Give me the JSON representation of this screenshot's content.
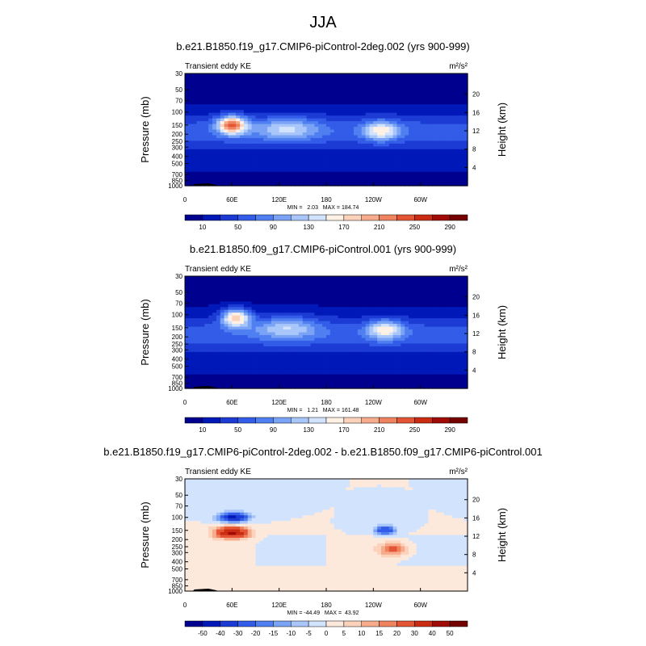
{
  "page_title": "JJA",
  "colors": {
    "seq": [
      "#00008f",
      "#0019b8",
      "#1c3ad4",
      "#335ce8",
      "#4f7ff0",
      "#7aa3f5",
      "#a8c6fa",
      "#d2e3fd",
      "#fff1e4",
      "#fcd2bb",
      "#f6ac8c",
      "#ef835f",
      "#e35535",
      "#c92b13",
      "#a10b05",
      "#740000"
    ],
    "div": [
      "#00008f",
      "#0019b8",
      "#1c3ad4",
      "#335ce8",
      "#4f7ff0",
      "#7aa3f5",
      "#a8c6fa",
      "#d2e3fd",
      "#fde9dc",
      "#fcd2bb",
      "#f6ac8c",
      "#ef835f",
      "#e35535",
      "#c92b13",
      "#a10b05",
      "#740000"
    ]
  },
  "chart_data": [
    {
      "type": "heatmap",
      "title": "b.e21.B1850.f19_g17.CMIP6-piControl-2deg.002 (yrs 900-999)",
      "left_label": "Transient eddy KE",
      "unit_label": "m²/s²",
      "ylabel": "Pressure (mb)",
      "y2label": "Height (km)",
      "xticks": [
        "0",
        "60E",
        "120E",
        "180",
        "120W",
        "60W"
      ],
      "pressure_ticks": [
        "30",
        "50",
        "70",
        "100",
        "150",
        "200",
        "250",
        "300",
        "400",
        "500",
        "700",
        "850",
        "1000"
      ],
      "height_ticks": [
        "4",
        "8",
        "12",
        "16",
        "20"
      ],
      "stats": "MIN =   2.03   MAX = 184.74",
      "min": 2.03,
      "max": 184.74,
      "colorbar": {
        "labels": [
          "10",
          "50",
          "90",
          "130",
          "170",
          "210",
          "250",
          "290"
        ],
        "levels": [
          10,
          30,
          50,
          70,
          90,
          110,
          130,
          150,
          170,
          190,
          210,
          230,
          250,
          270,
          290
        ]
      },
      "features": [
        {
          "lon": 60,
          "p": 150,
          "value": 185,
          "lon_spread": 18,
          "p_spread": 0.28
        },
        {
          "lon": 250,
          "p": 180,
          "value": 110,
          "lon_spread": 22,
          "p_spread": 0.3
        },
        {
          "lon": 130,
          "p": 170,
          "value": 75,
          "lon_spread": 40,
          "p_spread": 0.35
        }
      ]
    },
    {
      "type": "heatmap",
      "title": "b.e21.B1850.f09_g17.CMIP6-piControl.001 (yrs 900-999)",
      "left_label": "Transient eddy KE",
      "unit_label": "m²/s²",
      "ylabel": "Pressure (mb)",
      "y2label": "Height (km)",
      "xticks": [
        "0",
        "60E",
        "120E",
        "180",
        "120W",
        "60W"
      ],
      "pressure_ticks": [
        "30",
        "50",
        "70",
        "100",
        "150",
        "200",
        "250",
        "300",
        "400",
        "500",
        "700",
        "850",
        "1000"
      ],
      "height_ticks": [
        "4",
        "8",
        "12",
        "16",
        "20"
      ],
      "stats": "MIN =   1.21   MAX = 161.48",
      "min": 1.21,
      "max": 161.48,
      "colorbar": {
        "labels": [
          "10",
          "50",
          "90",
          "130",
          "170",
          "210",
          "250",
          "290"
        ],
        "levels": [
          10,
          30,
          50,
          70,
          90,
          110,
          130,
          150,
          170,
          190,
          210,
          230,
          250,
          270,
          290
        ]
      },
      "features": [
        {
          "lon": 65,
          "p": 110,
          "value": 160,
          "lon_spread": 18,
          "p_spread": 0.28
        },
        {
          "lon": 255,
          "p": 160,
          "value": 110,
          "lon_spread": 22,
          "p_spread": 0.3
        },
        {
          "lon": 130,
          "p": 150,
          "value": 75,
          "lon_spread": 40,
          "p_spread": 0.35
        }
      ]
    },
    {
      "type": "heatmap",
      "title": "b.e21.B1850.f19_g17.CMIP6-piControl-2deg.002 - b.e21.B1850.f09_g17.CMIP6-piControl.001",
      "left_label": "Transient eddy KE",
      "unit_label": "m²/s²",
      "ylabel": "Pressure (mb)",
      "y2label": "Height (km)",
      "xticks": [
        "0",
        "60E",
        "120E",
        "180",
        "120W",
        "60W"
      ],
      "pressure_ticks": [
        "30",
        "50",
        "70",
        "100",
        "150",
        "200",
        "250",
        "300",
        "400",
        "500",
        "700",
        "850",
        "1000"
      ],
      "height_ticks": [
        "4",
        "8",
        "12",
        "16",
        "20"
      ],
      "stats": "MIN = -44.49   MAX =  43.92",
      "min": -44.49,
      "max": 43.92,
      "colorbar": {
        "labels": [
          "-50",
          "-40",
          "-30",
          "-20",
          "-15",
          "-10",
          "-5",
          "0",
          "5",
          "10",
          "15",
          "20",
          "30",
          "40",
          "50"
        ],
        "levels": [
          -50,
          -40,
          -30,
          -20,
          -15,
          -10,
          -5,
          0,
          5,
          10,
          15,
          20,
          30,
          40,
          50
        ]
      },
      "features": [
        {
          "lon": 62,
          "p": 100,
          "value": -44,
          "lon_spread": 18,
          "p_spread": 0.15
        },
        {
          "lon": 60,
          "p": 160,
          "value": 44,
          "lon_spread": 22,
          "p_spread": 0.18
        },
        {
          "lon": 255,
          "p": 150,
          "value": -30,
          "lon_spread": 12,
          "p_spread": 0.14
        },
        {
          "lon": 265,
          "p": 270,
          "value": 22,
          "lon_spread": 18,
          "p_spread": 0.2
        }
      ]
    }
  ]
}
